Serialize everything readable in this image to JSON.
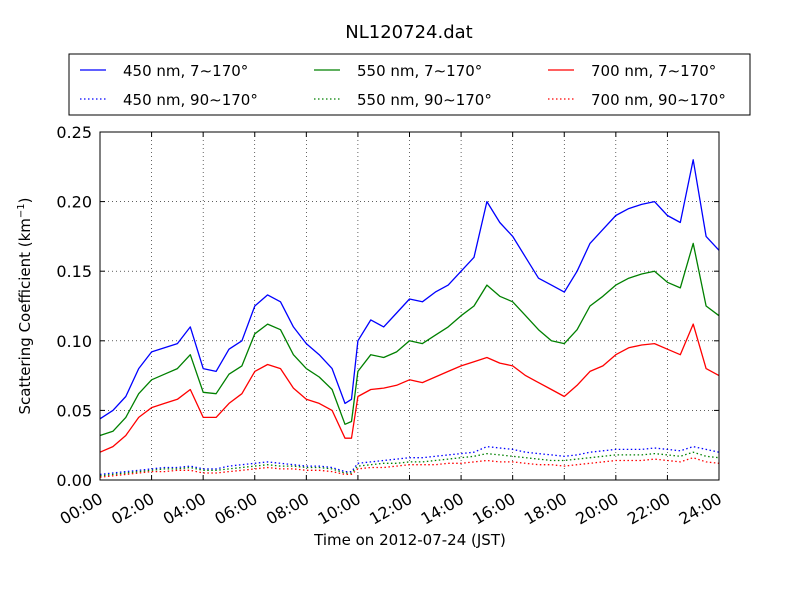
{
  "chart_data": {
    "type": "line",
    "title": "NL120724.dat",
    "xlabel": "Time on 2012-07-24 (JST)",
    "ylabel": "Scattering Coefficient (km",
    "ylabel_sup": "−1",
    "ylabel_close": ")",
    "xlim": [
      0,
      24
    ],
    "ylim": [
      0,
      0.25
    ],
    "grid": true,
    "legend_position": "top",
    "xticks": [
      0,
      2,
      4,
      6,
      8,
      10,
      12,
      14,
      16,
      18,
      20,
      22,
      24
    ],
    "xtick_labels": [
      "00:00",
      "02:00",
      "04:00",
      "06:00",
      "08:00",
      "10:00",
      "12:00",
      "14:00",
      "16:00",
      "18:00",
      "20:00",
      "22:00",
      "24:00"
    ],
    "yticks": [
      0,
      0.05,
      0.1,
      0.15,
      0.2,
      0.25
    ],
    "ytick_labels": [
      "0.00",
      "0.05",
      "0.10",
      "0.15",
      "0.20",
      "0.25"
    ],
    "x": [
      0,
      0.5,
      1,
      1.5,
      2,
      2.5,
      3,
      3.5,
      4,
      4.5,
      5,
      5.5,
      6,
      6.5,
      7,
      7.5,
      8,
      8.5,
      9,
      9.5,
      9.75,
      10,
      10.5,
      11,
      11.5,
      12,
      12.5,
      13,
      13.5,
      14,
      14.5,
      15,
      15.5,
      16,
      16.5,
      17,
      17.5,
      18,
      18.5,
      19,
      19.5,
      20,
      20.5,
      21,
      21.5,
      22,
      22.5,
      23,
      23.5,
      24
    ],
    "series": [
      {
        "name": "450 nm, 7∼170°",
        "color": "#0000ff",
        "style": "solid",
        "values": [
          0.044,
          0.05,
          0.06,
          0.08,
          0.092,
          0.095,
          0.098,
          0.11,
          0.08,
          0.078,
          0.094,
          0.1,
          0.125,
          0.133,
          0.128,
          0.11,
          0.098,
          0.09,
          0.08,
          0.055,
          0.058,
          0.1,
          0.115,
          0.11,
          0.12,
          0.13,
          0.128,
          0.135,
          0.14,
          0.15,
          0.16,
          0.2,
          0.185,
          0.175,
          0.16,
          0.145,
          0.14,
          0.135,
          0.15,
          0.17,
          0.18,
          0.19,
          0.195,
          0.198,
          0.2,
          0.19,
          0.185,
          0.23,
          0.175,
          0.165
        ]
      },
      {
        "name": "450 nm, 90∼170°",
        "color": "#0000ff",
        "style": "dotted",
        "values": [
          0.004,
          0.005,
          0.006,
          0.007,
          0.008,
          0.009,
          0.009,
          0.01,
          0.008,
          0.008,
          0.01,
          0.011,
          0.012,
          0.013,
          0.012,
          0.011,
          0.01,
          0.01,
          0.009,
          0.006,
          0.006,
          0.012,
          0.013,
          0.014,
          0.015,
          0.016,
          0.016,
          0.017,
          0.018,
          0.019,
          0.02,
          0.024,
          0.023,
          0.022,
          0.02,
          0.019,
          0.018,
          0.017,
          0.018,
          0.02,
          0.021,
          0.022,
          0.022,
          0.022,
          0.023,
          0.022,
          0.021,
          0.024,
          0.022,
          0.02
        ]
      },
      {
        "name": "550 nm, 7∼170°",
        "color": "#008000",
        "style": "solid",
        "values": [
          0.032,
          0.035,
          0.045,
          0.062,
          0.072,
          0.076,
          0.08,
          0.09,
          0.063,
          0.062,
          0.076,
          0.082,
          0.105,
          0.112,
          0.108,
          0.09,
          0.08,
          0.074,
          0.065,
          0.04,
          0.042,
          0.078,
          0.09,
          0.088,
          0.092,
          0.1,
          0.098,
          0.104,
          0.11,
          0.118,
          0.125,
          0.14,
          0.132,
          0.128,
          0.118,
          0.108,
          0.1,
          0.098,
          0.108,
          0.125,
          0.132,
          0.14,
          0.145,
          0.148,
          0.15,
          0.142,
          0.138,
          0.17,
          0.125,
          0.118
        ]
      },
      {
        "name": "550 nm, 90∼170°",
        "color": "#008000",
        "style": "dotted",
        "values": [
          0.003,
          0.004,
          0.005,
          0.006,
          0.007,
          0.008,
          0.008,
          0.009,
          0.007,
          0.007,
          0.008,
          0.009,
          0.01,
          0.011,
          0.01,
          0.01,
          0.009,
          0.009,
          0.008,
          0.005,
          0.005,
          0.01,
          0.011,
          0.012,
          0.012,
          0.013,
          0.013,
          0.014,
          0.015,
          0.016,
          0.017,
          0.019,
          0.018,
          0.017,
          0.016,
          0.015,
          0.014,
          0.014,
          0.015,
          0.016,
          0.017,
          0.018,
          0.018,
          0.018,
          0.019,
          0.018,
          0.017,
          0.02,
          0.017,
          0.016
        ]
      },
      {
        "name": "700 nm, 7∼170°",
        "color": "#ff0000",
        "style": "solid",
        "values": [
          0.02,
          0.024,
          0.032,
          0.045,
          0.052,
          0.055,
          0.058,
          0.065,
          0.045,
          0.045,
          0.055,
          0.062,
          0.078,
          0.083,
          0.08,
          0.066,
          0.058,
          0.055,
          0.05,
          0.03,
          0.03,
          0.06,
          0.065,
          0.066,
          0.068,
          0.072,
          0.07,
          0.074,
          0.078,
          0.082,
          0.085,
          0.088,
          0.084,
          0.082,
          0.075,
          0.07,
          0.065,
          0.06,
          0.068,
          0.078,
          0.082,
          0.09,
          0.095,
          0.097,
          0.098,
          0.094,
          0.09,
          0.112,
          0.08,
          0.075
        ]
      },
      {
        "name": "700 nm, 90∼170°",
        "color": "#ff0000",
        "style": "dotted",
        "values": [
          0.002,
          0.003,
          0.004,
          0.005,
          0.006,
          0.006,
          0.007,
          0.007,
          0.005,
          0.005,
          0.006,
          0.007,
          0.008,
          0.009,
          0.008,
          0.008,
          0.007,
          0.007,
          0.006,
          0.004,
          0.004,
          0.008,
          0.009,
          0.009,
          0.01,
          0.011,
          0.011,
          0.011,
          0.012,
          0.012,
          0.013,
          0.014,
          0.013,
          0.013,
          0.012,
          0.011,
          0.011,
          0.01,
          0.011,
          0.012,
          0.013,
          0.014,
          0.014,
          0.014,
          0.015,
          0.014,
          0.013,
          0.016,
          0.013,
          0.012
        ]
      }
    ]
  }
}
